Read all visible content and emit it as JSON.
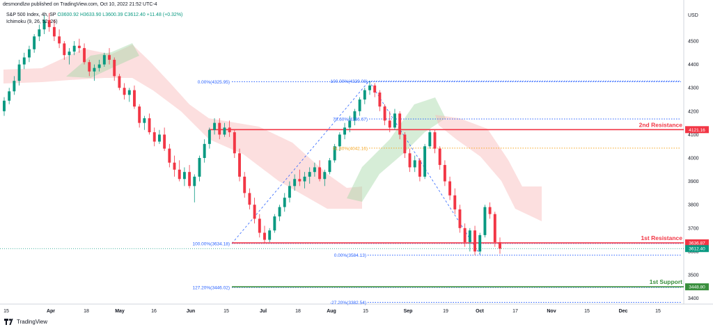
{
  "header": {
    "publisher": "desmondlzw published on TradingView.com, Oct 10, 2022 21:52 UTC-4",
    "symbol": "S&P 500 Index, 4h, SP",
    "ohlc": "O3600.92 H3633.90 L3600.39 C3612.40 +11.48 (+0.32%)",
    "indicator": "Ichimoku (9, 26, 52, 26)"
  },
  "footer": {
    "brand": "TradingView"
  },
  "chart_data": {
    "type": "candlestick",
    "currency": "USD",
    "y_ticks": [
      3400,
      3500,
      3600,
      3700,
      3800,
      3900,
      4000,
      4100,
      4200,
      4300,
      4400,
      4500
    ],
    "ylim": [
      3375,
      4640
    ],
    "x_ticks": [
      "15",
      "Apr",
      "18",
      "May",
      "16",
      "Jun",
      "15",
      "Jul",
      "18",
      "Aug",
      "15",
      "Sep",
      "19",
      "Oct",
      "17",
      "Nov",
      "15",
      "Dec",
      "15"
    ],
    "colors": {
      "up": "#089981",
      "down": "#f23645",
      "resistance": "#f23645",
      "support": "#388e3c",
      "fib": "#2962ff",
      "fib_mid": "#f5a623",
      "cloud_bull": "#a5d6a7",
      "cloud_bear": "#f8b9b9"
    },
    "key_levels": [
      {
        "label": "2nd Resistance",
        "price_label": "4121.16",
        "value": 4121.16,
        "color": "#f23645"
      },
      {
        "label": "1st Resistance",
        "price_label": "3636.87",
        "value": 3636.87,
        "color": "#f23645"
      },
      {
        "label": "1st Support",
        "price_label": "3448.80",
        "value": 3448.8,
        "color": "#388e3c"
      }
    ],
    "current_price": {
      "value": 3612.4,
      "label": "3612.40"
    },
    "fib_top": [
      {
        "label": "0.00%(4325.95)",
        "value": 4325.95
      },
      {
        "label": "100.00%(3634.18)",
        "value": 3634.18
      },
      {
        "label": "127.20%(3446.02)",
        "value": 3446.02
      }
    ],
    "fib_up": [
      {
        "label": "100.00%(4329.08)",
        "value": 4329.08
      },
      {
        "label": "78.60%(4166.67)",
        "value": 4166.67
      },
      {
        "label": "61.80%(4042.16)",
        "value": 4042.16
      }
    ],
    "fib_down": [
      {
        "label": "0.00%(3584.13)",
        "value": 3584.13
      },
      {
        "label": "-27.20%(3382.54)",
        "value": 3382.54
      }
    ],
    "candles": [
      [
        4200,
        4260,
        4180,
        4245
      ],
      [
        4245,
        4300,
        4230,
        4285
      ],
      [
        4285,
        4350,
        4270,
        4330
      ],
      [
        4330,
        4420,
        4310,
        4400
      ],
      [
        4400,
        4450,
        4380,
        4430
      ],
      [
        4430,
        4480,
        4410,
        4465
      ],
      [
        4465,
        4530,
        4450,
        4520
      ],
      [
        4520,
        4570,
        4500,
        4550
      ],
      [
        4550,
        4610,
        4530,
        4590
      ],
      [
        4590,
        4620,
        4540,
        4560
      ],
      [
        4560,
        4590,
        4500,
        4520
      ],
      [
        4520,
        4550,
        4470,
        4490
      ],
      [
        4490,
        4500,
        4420,
        4440
      ],
      [
        4440,
        4470,
        4400,
        4455
      ],
      [
        4455,
        4500,
        4440,
        4480
      ],
      [
        4480,
        4510,
        4450,
        4470
      ],
      [
        4470,
        4490,
        4400,
        4410
      ],
      [
        4410,
        4420,
        4350,
        4370
      ],
      [
        4370,
        4400,
        4330,
        4385
      ],
      [
        4385,
        4420,
        4370,
        4400
      ],
      [
        4400,
        4450,
        4390,
        4440
      ],
      [
        4440,
        4470,
        4400,
        4420
      ],
      [
        4420,
        4430,
        4330,
        4350
      ],
      [
        4350,
        4360,
        4290,
        4300
      ],
      [
        4300,
        4320,
        4250,
        4270
      ],
      [
        4270,
        4300,
        4240,
        4290
      ],
      [
        4290,
        4310,
        4210,
        4220
      ],
      [
        4220,
        4230,
        4130,
        4150
      ],
      [
        4150,
        4180,
        4120,
        4170
      ],
      [
        4170,
        4190,
        4100,
        4110
      ],
      [
        4110,
        4130,
        4050,
        4070
      ],
      [
        4070,
        4120,
        4060,
        4100
      ],
      [
        4100,
        4130,
        4030,
        4040
      ],
      [
        4040,
        4060,
        3960,
        3980
      ],
      [
        3980,
        4010,
        3920,
        3950
      ],
      [
        3950,
        3990,
        3900,
        3910
      ],
      [
        3910,
        3960,
        3880,
        3940
      ],
      [
        3940,
        3970,
        3870,
        3880
      ],
      [
        3880,
        3930,
        3810,
        3920
      ],
      [
        3920,
        4010,
        3900,
        4000
      ],
      [
        4000,
        4080,
        3980,
        4060
      ],
      [
        4060,
        4130,
        4040,
        4120
      ],
      [
        4120,
        4170,
        4100,
        4150
      ],
      [
        4150,
        4170,
        4080,
        4100
      ],
      [
        4100,
        4150,
        4090,
        4130
      ],
      [
        4130,
        4160,
        4090,
        4110
      ],
      [
        4110,
        4120,
        4000,
        4020
      ],
      [
        4020,
        4040,
        3900,
        3920
      ],
      [
        3920,
        3940,
        3830,
        3850
      ],
      [
        3850,
        3870,
        3780,
        3800
      ],
      [
        3800,
        3830,
        3720,
        3740
      ],
      [
        3740,
        3760,
        3660,
        3680
      ],
      [
        3680,
        3710,
        3636,
        3650
      ],
      [
        3650,
        3700,
        3640,
        3690
      ],
      [
        3690,
        3760,
        3680,
        3750
      ],
      [
        3750,
        3800,
        3730,
        3790
      ],
      [
        3790,
        3850,
        3770,
        3830
      ],
      [
        3830,
        3900,
        3810,
        3880
      ],
      [
        3880,
        3930,
        3860,
        3910
      ],
      [
        3910,
        3950,
        3880,
        3900
      ],
      [
        3900,
        3940,
        3870,
        3920
      ],
      [
        3920,
        3960,
        3890,
        3940
      ],
      [
        3940,
        3980,
        3920,
        3960
      ],
      [
        3960,
        3990,
        3900,
        3910
      ],
      [
        3910,
        3950,
        3880,
        3940
      ],
      [
        3940,
        4000,
        3930,
        3990
      ],
      [
        3990,
        4060,
        3980,
        4050
      ],
      [
        4050,
        4110,
        4030,
        4100
      ],
      [
        4100,
        4150,
        4080,
        4130
      ],
      [
        4130,
        4180,
        4110,
        4160
      ],
      [
        4160,
        4210,
        4140,
        4200
      ],
      [
        4200,
        4260,
        4180,
        4250
      ],
      [
        4250,
        4300,
        4230,
        4290
      ],
      [
        4290,
        4329,
        4270,
        4310
      ],
      [
        4310,
        4320,
        4260,
        4280
      ],
      [
        4280,
        4290,
        4200,
        4220
      ],
      [
        4220,
        4230,
        4140,
        4160
      ],
      [
        4160,
        4200,
        4110,
        4130
      ],
      [
        4130,
        4210,
        4120,
        4190
      ],
      [
        4190,
        4200,
        4080,
        4100
      ],
      [
        4100,
        4110,
        4000,
        4020
      ],
      [
        4020,
        4040,
        3940,
        3960
      ],
      [
        3960,
        4010,
        3940,
        3990
      ],
      [
        3990,
        4000,
        3900,
        3920
      ],
      [
        3920,
        4060,
        3910,
        4050
      ],
      [
        4050,
        4120,
        4040,
        4110
      ],
      [
        4110,
        4120,
        4020,
        4040
      ],
      [
        4040,
        4050,
        3950,
        3970
      ],
      [
        3970,
        3990,
        3880,
        3900
      ],
      [
        3900,
        3920,
        3820,
        3840
      ],
      [
        3840,
        3870,
        3760,
        3780
      ],
      [
        3780,
        3800,
        3680,
        3700
      ],
      [
        3700,
        3720,
        3620,
        3640
      ],
      [
        3640,
        3700,
        3600,
        3690
      ],
      [
        3690,
        3710,
        3584,
        3600
      ],
      [
        3600,
        3680,
        3590,
        3670
      ],
      [
        3670,
        3800,
        3660,
        3790
      ],
      [
        3790,
        3810,
        3740,
        3760
      ],
      [
        3760,
        3770,
        3620,
        3640
      ],
      [
        3640,
        3660,
        3590,
        3612
      ]
    ]
  }
}
